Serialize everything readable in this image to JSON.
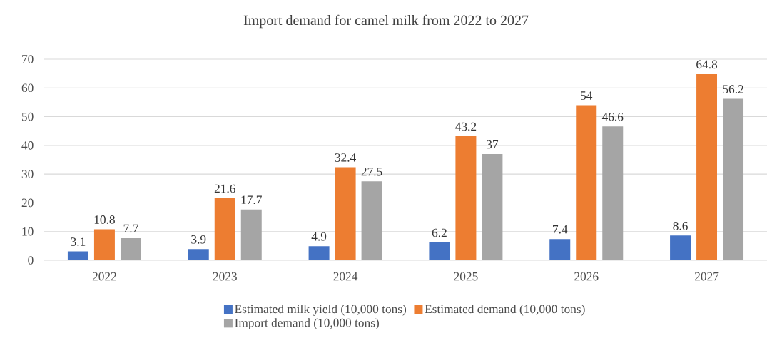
{
  "chart_data": {
    "type": "bar",
    "title": "Import demand for camel milk from 2022 to 2027",
    "categories": [
      "2022",
      "2023",
      "2024",
      "2025",
      "2026",
      "2027"
    ],
    "series": [
      {
        "name": "Estimated milk yield (10,000 tons)",
        "color": "#4472c4",
        "values": [
          3.1,
          3.9,
          4.9,
          6.2,
          7.4,
          8.6
        ]
      },
      {
        "name": "Estimated demand (10,000 tons)",
        "color": "#ed7d31",
        "values": [
          10.8,
          21.6,
          32.4,
          43.2,
          54,
          64.8
        ]
      },
      {
        "name": "Import demand (10,000 tons)",
        "color": "#a5a5a5",
        "values": [
          7.7,
          17.7,
          27.5,
          37,
          46.6,
          56.2
        ]
      }
    ],
    "ylim": [
      0,
      70
    ],
    "yticks": [
      0,
      10,
      20,
      30,
      40,
      50,
      60,
      70
    ],
    "grid": "y",
    "legend": "bottom",
    "data_labels": true
  }
}
